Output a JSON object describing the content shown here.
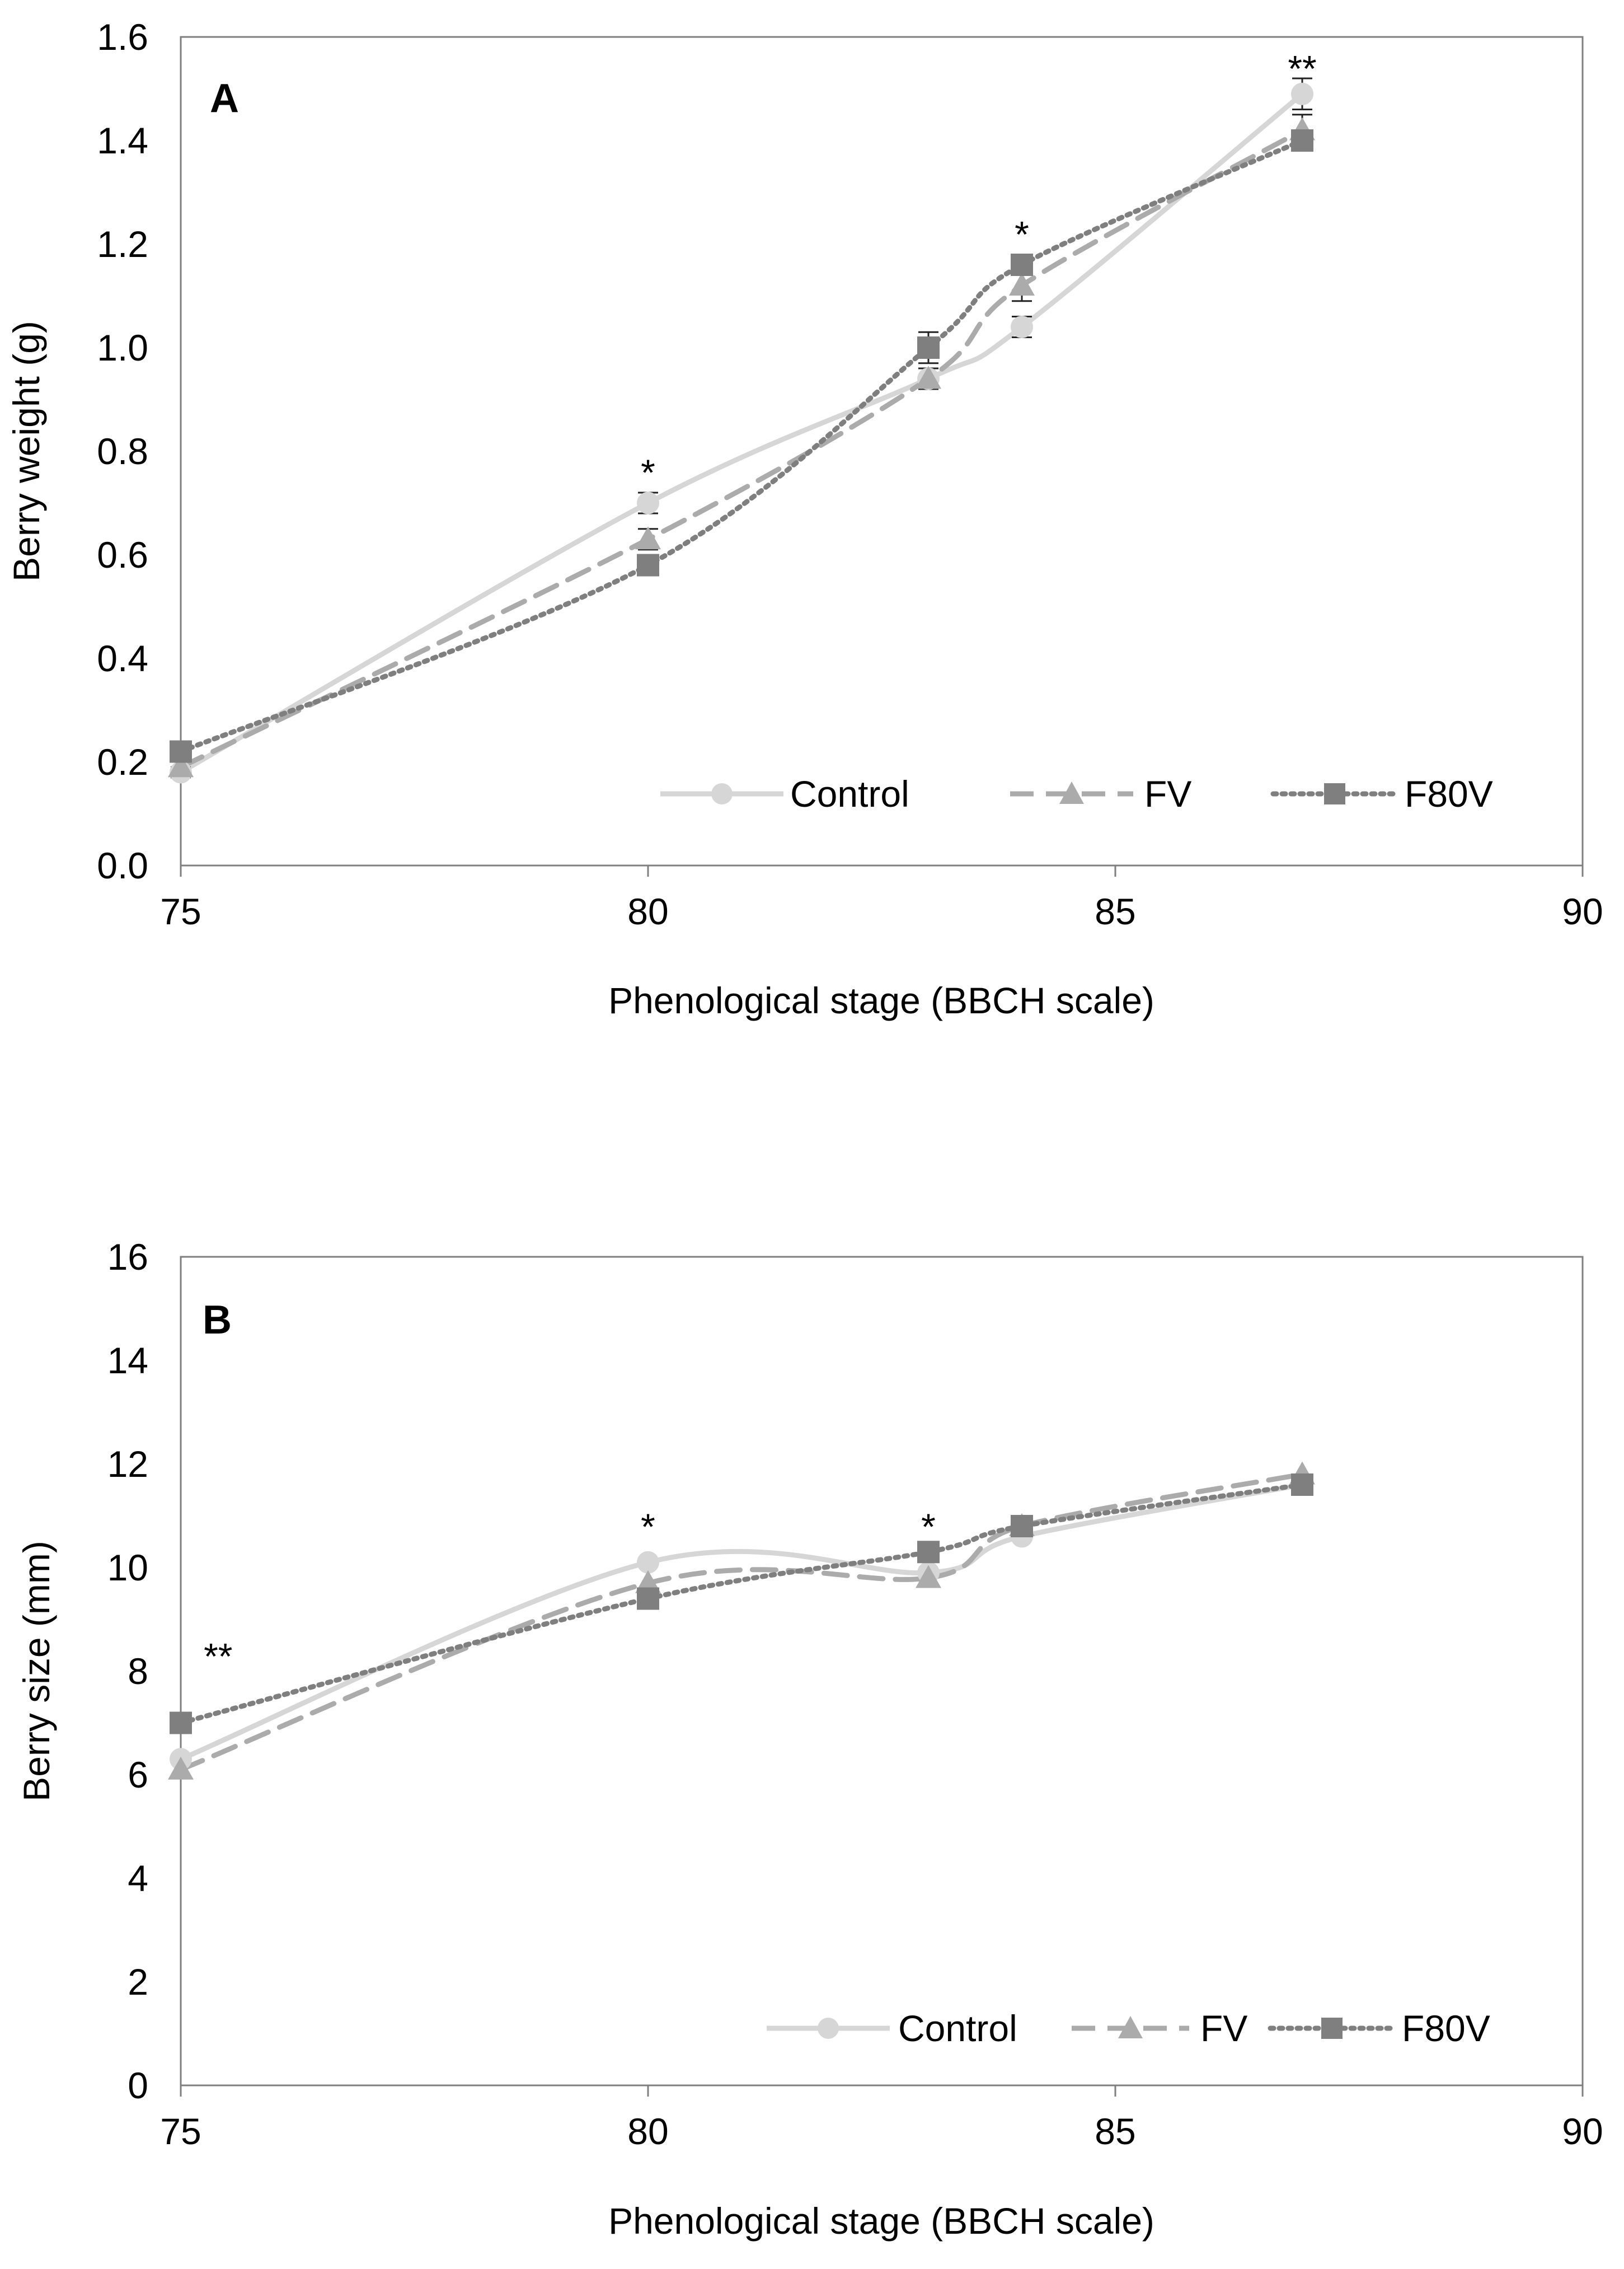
{
  "colors": {
    "control": "#d6d6d6",
    "fv": "#ababab",
    "f80v": "#7f7f7f",
    "axis": "#7f7f7f",
    "errorbar": "#222222"
  },
  "legend": {
    "control": "Control",
    "fv": "FV",
    "f80v": "F80V"
  },
  "chart_data": [
    {
      "type": "line",
      "panel_label": "A",
      "xlabel": "Phenological stage (BBCH scale)",
      "ylabel": "Berry weight (g)",
      "xlim": [
        75,
        90
      ],
      "ylim": [
        0,
        1.6
      ],
      "xticks": [
        75,
        80,
        85,
        90
      ],
      "xtick_labels": [
        "75",
        "80",
        "85",
        "90"
      ],
      "yticks": [
        0,
        0.2,
        0.4,
        0.6,
        0.8,
        1.0,
        1.2,
        1.4,
        1.6
      ],
      "ytick_labels": [
        "0.0",
        "0.2",
        "0.4",
        "0.6",
        "0.8",
        "1.0",
        "1.2",
        "1.4",
        "1.6"
      ],
      "grid": false,
      "legend_position": "bottom-right",
      "x": [
        75,
        80,
        83,
        84,
        87
      ],
      "series": [
        {
          "key": "control",
          "name": "Control",
          "marker": "circle",
          "line": "solid",
          "values": [
            0.18,
            0.7,
            0.94,
            1.04,
            1.49
          ],
          "errors": [
            0.01,
            0.02,
            0.02,
            0.02,
            0.03
          ]
        },
        {
          "key": "fv",
          "name": "FV",
          "marker": "triangle",
          "line": "dashed",
          "values": [
            0.19,
            0.63,
            0.94,
            1.12,
            1.42
          ],
          "errors": [
            0.01,
            0.02,
            0.02,
            0.03,
            0.03
          ]
        },
        {
          "key": "f80v",
          "name": "F80V",
          "marker": "square",
          "line": "dotted",
          "values": [
            0.22,
            0.58,
            1.0,
            1.16,
            1.4
          ],
          "errors": [
            0.01,
            0.02,
            0.03,
            0.02,
            0.02
          ]
        }
      ],
      "annotations": [
        {
          "x": 80,
          "y": 0.76,
          "text": "*"
        },
        {
          "x": 84,
          "y": 1.22,
          "text": "*"
        },
        {
          "x": 87,
          "y": 1.54,
          "text": "**"
        }
      ]
    },
    {
      "type": "line",
      "panel_label": "B",
      "xlabel": "Phenological stage (BBCH scale)",
      "ylabel": "Berry size (mm)",
      "xlim": [
        75,
        90
      ],
      "ylim": [
        0,
        16
      ],
      "xticks": [
        75,
        80,
        85,
        90
      ],
      "xtick_labels": [
        "75",
        "80",
        "85",
        "90"
      ],
      "yticks": [
        0,
        2,
        4,
        6,
        8,
        10,
        12,
        14,
        16
      ],
      "ytick_labels": [
        "0",
        "2",
        "4",
        "6",
        "8",
        "10",
        "12",
        "14",
        "16"
      ],
      "grid": false,
      "legend_position": "bottom-right",
      "x": [
        75,
        80,
        83,
        84,
        87
      ],
      "series": [
        {
          "key": "control",
          "name": "Control",
          "marker": "circle",
          "line": "solid",
          "values": [
            6.3,
            10.1,
            9.9,
            10.6,
            11.6
          ]
        },
        {
          "key": "fv",
          "name": "FV",
          "marker": "triangle",
          "line": "dashed",
          "values": [
            6.1,
            9.7,
            9.8,
            10.8,
            11.8
          ]
        },
        {
          "key": "f80v",
          "name": "F80V",
          "marker": "square",
          "line": "dotted",
          "values": [
            7.0,
            9.4,
            10.3,
            10.8,
            11.6
          ]
        }
      ],
      "annotations": [
        {
          "x": 75.4,
          "y": 8.3,
          "text": "**"
        },
        {
          "x": 80,
          "y": 10.8,
          "text": "*"
        },
        {
          "x": 83,
          "y": 10.8,
          "text": "*"
        }
      ]
    }
  ]
}
